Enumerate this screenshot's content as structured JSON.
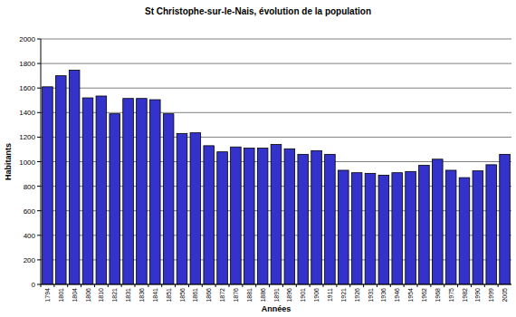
{
  "chart_data": {
    "type": "bar",
    "title": "St Christophe-sur-le-Nais, évolution de la population",
    "x_label": "Années",
    "y_label": "Habitants",
    "categories": [
      "1794",
      "1801",
      "1804",
      "1806",
      "1810",
      "1821",
      "1831",
      "1836",
      "1841",
      "1851",
      "1856",
      "1861",
      "1866",
      "1872",
      "1876",
      "1881",
      "1886",
      "1891",
      "1896",
      "1901",
      "1906",
      "1911",
      "1921",
      "1926",
      "1931",
      "1936",
      "1946",
      "1954",
      "1962",
      "1968",
      "1975",
      "1982",
      "1990",
      "1999",
      "2005"
    ],
    "values": [
      1610,
      1700,
      1745,
      1520,
      1535,
      1390,
      1515,
      1515,
      1505,
      1390,
      1230,
      1235,
      1130,
      1080,
      1120,
      1110,
      1110,
      1140,
      1105,
      1060,
      1090,
      1060,
      930,
      910,
      905,
      890,
      910,
      920,
      970,
      1020,
      930,
      870,
      925,
      975,
      1060
    ],
    "color": "#3333cc",
    "ylim": [
      0,
      2000
    ],
    "yticks": [
      0,
      200,
      400,
      600,
      800,
      1000,
      1200,
      1400,
      1600,
      1800,
      2000
    ],
    "grid": true
  }
}
